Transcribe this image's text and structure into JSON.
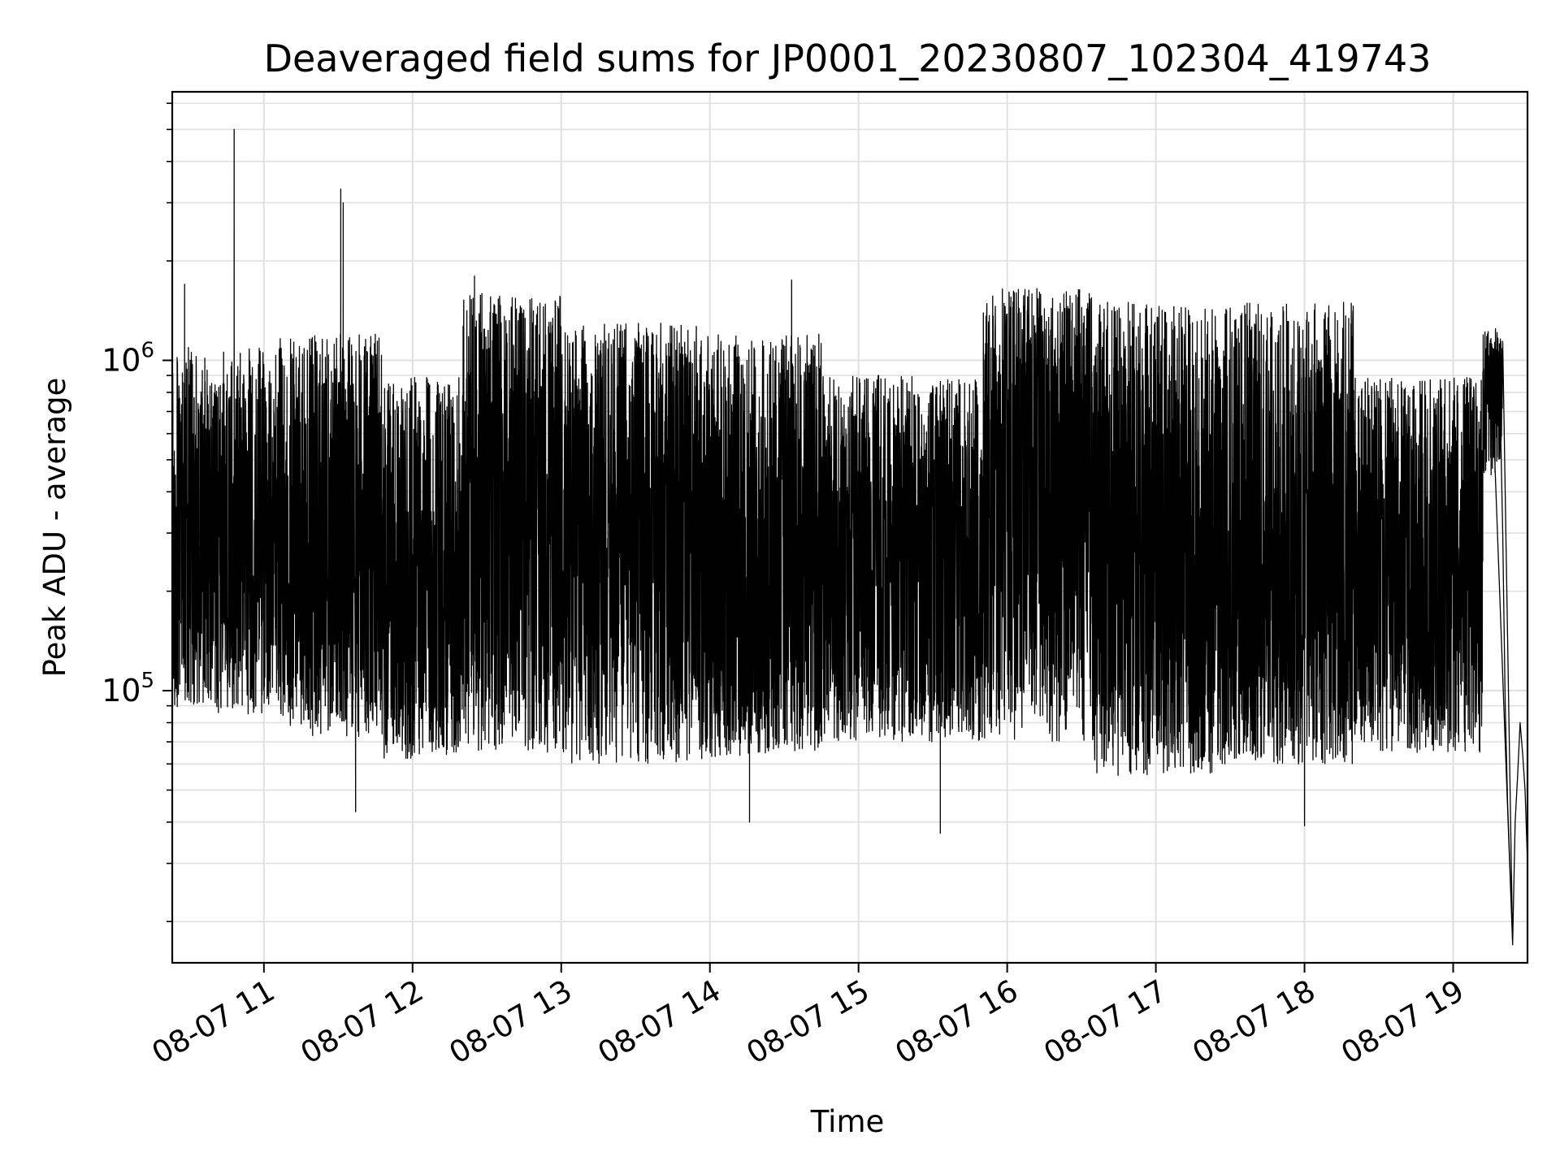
{
  "chart_data": {
    "type": "line",
    "title": "Deaveraged field sums for JP0001_20230807_102304_419743",
    "xlabel": "Time",
    "ylabel": "Peak ADU - average",
    "yscale": "log",
    "ylim": [
      15000,
      6500000
    ],
    "xlim": [
      "08-07 10:23",
      "08-07 19:30"
    ],
    "grid": true,
    "line_color": "#000000",
    "grid_color": "#e0e0e0",
    "x_ticks": [
      "08-07 11",
      "08-07 12",
      "08-07 13",
      "08-07 14",
      "08-07 15",
      "08-07 16",
      "08-07 17",
      "08-07 18",
      "08-07 19"
    ],
    "y_ticks": [
      {
        "value": 100000,
        "base": "10",
        "exp": "5"
      },
      {
        "value": 1000000,
        "base": "10",
        "exp": "6"
      }
    ],
    "segments": [
      {
        "start": "08-07 10:23",
        "end": "08-07 11:06",
        "low": 85000,
        "high": 1100000,
        "median": 280000
      },
      {
        "start": "08-07 11:06",
        "end": "08-07 11:48",
        "low": 72000,
        "high": 1200000,
        "median": 250000
      },
      {
        "start": "08-07 11:48",
        "end": "08-07 12:20",
        "low": 62000,
        "high": 900000,
        "median": 210000
      },
      {
        "start": "08-07 12:20",
        "end": "08-07 13:00",
        "low": 65000,
        "high": 1600000,
        "median": 420000
      },
      {
        "start": "08-07 13:00",
        "end": "08-07 13:55",
        "low": 60000,
        "high": 1300000,
        "median": 330000
      },
      {
        "start": "08-07 13:55",
        "end": "08-07 14:45",
        "low": 62000,
        "high": 1200000,
        "median": 220000
      },
      {
        "start": "08-07 14:45",
        "end": "08-07 15:50",
        "low": 70000,
        "high": 900000,
        "median": 260000
      },
      {
        "start": "08-07 15:50",
        "end": "08-07 16:35",
        "low": 70000,
        "high": 1650000,
        "median": 500000
      },
      {
        "start": "08-07 16:35",
        "end": "08-07 17:25",
        "low": 55000,
        "high": 1500000,
        "median": 300000
      },
      {
        "start": "08-07 17:25",
        "end": "08-07 18:20",
        "low": 60000,
        "high": 1500000,
        "median": 230000
      },
      {
        "start": "08-07 18:20",
        "end": "08-07 19:12",
        "low": 65000,
        "high": 900000,
        "median": 260000
      },
      {
        "start": "08-07 19:12",
        "end": "08-07 19:20",
        "low": 450000,
        "high": 1250000,
        "median": 900000
      }
    ],
    "peaks": [
      {
        "x": "08-07 10:48",
        "y": 5000000
      },
      {
        "x": "08-07 11:31",
        "y": 3300000
      },
      {
        "x": "08-07 11:32",
        "y": 3000000
      },
      {
        "x": "08-07 10:28",
        "y": 1700000
      },
      {
        "x": "08-07 12:25",
        "y": 1800000
      },
      {
        "x": "08-07 14:33",
        "y": 1750000
      },
      {
        "x": "08-07 16:12",
        "y": 1650000
      }
    ],
    "dips": [
      {
        "x": "08-07 11:37",
        "y": 43000
      },
      {
        "x": "08-07 14:16",
        "y": 40000
      },
      {
        "x": "08-07 15:33",
        "y": 37000
      },
      {
        "x": "08-07 18:00",
        "y": 39000
      },
      {
        "x": "08-07 19:24",
        "y": 17000
      }
    ],
    "tail": [
      {
        "x": "08-07 19:15",
        "y": 1150000
      },
      {
        "x": "08-07 19:17",
        "y": 1000000
      },
      {
        "x": "08-07 19:19",
        "y": 700000
      },
      {
        "x": "08-07 19:20",
        "y": 300000
      },
      {
        "x": "08-07 19:21",
        "y": 90000
      },
      {
        "x": "08-07 19:22",
        "y": 45000
      },
      {
        "x": "08-07 19:23",
        "y": 28000
      },
      {
        "x": "08-07 19:24",
        "y": 17000
      },
      {
        "x": "08-07 19:25",
        "y": 40000
      },
      {
        "x": "08-07 19:26",
        "y": 55000
      },
      {
        "x": "08-07 19:27",
        "y": 80000
      },
      {
        "x": "08-07 19:28",
        "y": 65000
      },
      {
        "x": "08-07 19:29",
        "y": 50000
      },
      {
        "x": "08-07 19:30",
        "y": 30000
      }
    ]
  }
}
